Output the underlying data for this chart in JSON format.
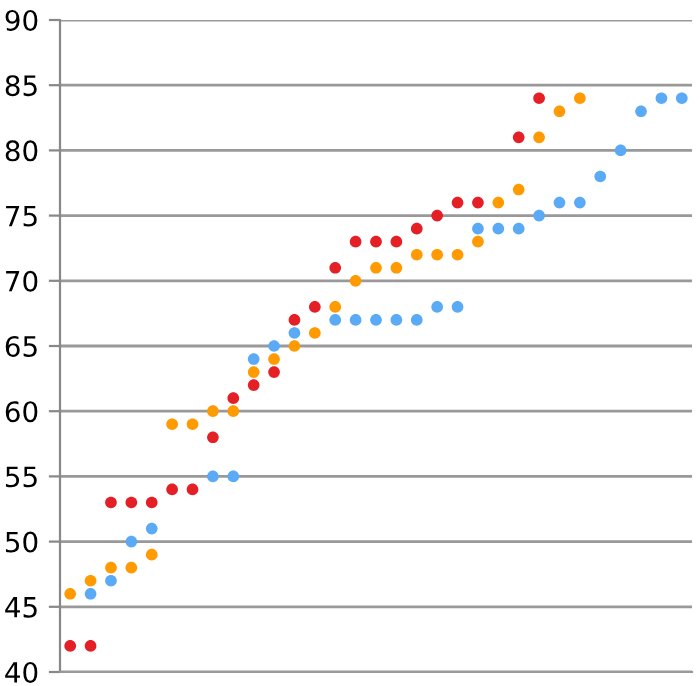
{
  "chart_data": {
    "type": "scatter",
    "categories": [
      null,
      null,
      null,
      null,
      null,
      null,
      null,
      null,
      null,
      null,
      null,
      null,
      null,
      null,
      null,
      null,
      null,
      null,
      null,
      null,
      null,
      null,
      null,
      null,
      null,
      null,
      null,
      null,
      null,
      null,
      null
    ],
    "series": [
      {
        "color": "#e41f26",
        "values": [
          42,
          42,
          53,
          53,
          53,
          54,
          54,
          58,
          61,
          62,
          63,
          67,
          68,
          71,
          73,
          73,
          73,
          74,
          75,
          76,
          76,
          null,
          81,
          84,
          null,
          null,
          null,
          null,
          null,
          null,
          null
        ]
      },
      {
        "color": "#ff9a00",
        "values": [
          46,
          47,
          48,
          48,
          49,
          59,
          59,
          60,
          60,
          63,
          64,
          65,
          66,
          68,
          70,
          71,
          71,
          72,
          72,
          72,
          73,
          76,
          77,
          81,
          83,
          84,
          null,
          null,
          null,
          null,
          null
        ]
      },
      {
        "color": "#5aaaf5",
        "values": [
          null,
          46,
          47,
          50,
          51,
          null,
          null,
          55,
          55,
          64,
          65,
          66,
          null,
          67,
          67,
          67,
          67,
          67,
          68,
          68,
          74,
          74,
          74,
          75,
          76,
          76,
          78,
          80,
          83,
          84,
          84
        ]
      }
    ],
    "ylim": [
      40,
      90
    ],
    "yticks": [
      40,
      45,
      50,
      55,
      60,
      65,
      70,
      75,
      80,
      85,
      90
    ],
    "grid": "y",
    "marker": "circle"
  }
}
